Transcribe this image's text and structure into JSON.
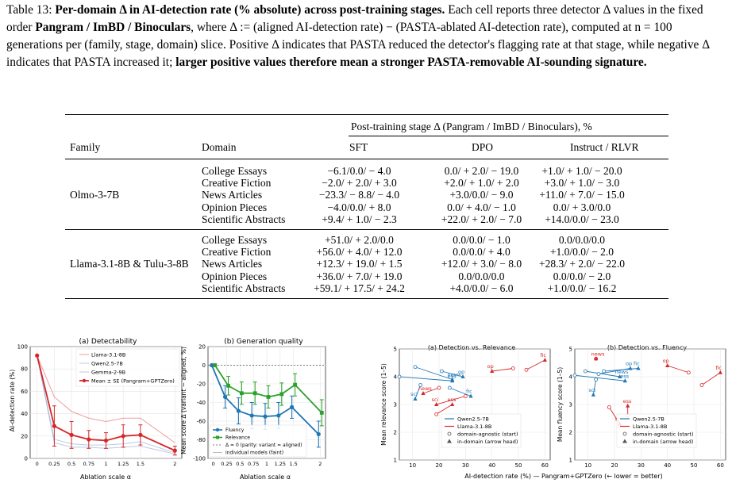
{
  "caption": {
    "label": "Table 13:",
    "title": "Per-domain Δ in AI-detection rate (% absolute) across post-training stages.",
    "text1": "Each cell reports three detector Δ values in the fixed order",
    "order": "Pangram / ImBD / Binoculars",
    "text2": ", where Δ := (aligned AI-detection rate) − (PASTA-ablated AI-detection rate), computed at n = 100 generations per (family, stage, domain) slice. Positive Δ indicates that PASTA reduced the detector's flagging rate at that stage, while negative Δ indicates that PASTA increased it;",
    "emph": "larger positive values therefore mean a stronger PASTA-removable AI-sounding signature."
  },
  "table": {
    "group_header": "Post-training stage   Δ (Pangram / ImBD / Binoculars), %",
    "col_family": "Family",
    "col_domain": "Domain",
    "stages": [
      "SFT",
      "DPO",
      "Instruct / RLVR"
    ],
    "groups": [
      {
        "family": "Olmo-3-7B",
        "rows": [
          {
            "domain": "College Essays",
            "vals": [
              "−6.1/0.0/ − 4.0",
              "0.0/ + 2.0/ − 19.0",
              "+1.0/ + 1.0/ − 20.0"
            ]
          },
          {
            "domain": "Creative Fiction",
            "vals": [
              "−2.0/ + 2.0/ + 3.0",
              "+2.0/ + 1.0/ + 2.0",
              "+3.0/ + 1.0/ − 3.0"
            ]
          },
          {
            "domain": "News Articles",
            "vals": [
              "−23.3/ − 8.8/ − 4.0",
              "+3.0/0.0/ − 9.0",
              "+11.0/ + 7.0/ − 15.0"
            ]
          },
          {
            "domain": "Opinion Pieces",
            "vals": [
              "−4.0/0.0/ + 8.0",
              "0.0/ + 4.0/ − 1.0",
              "0.0/ + 3.0/0.0"
            ]
          },
          {
            "domain": "Scientific Abstracts",
            "vals": [
              "+9.4/ + 1.0/ − 2.3",
              "+22.0/ + 2.0/ − 7.0",
              "+14.0/0.0/ − 23.0"
            ]
          }
        ]
      },
      {
        "family": "Llama-3.1-8B & Tulu-3-8B",
        "rows": [
          {
            "domain": "College Essays",
            "vals": [
              "+51.0/ + 2.0/0.0",
              "0.0/0.0/ − 1.0",
              "0.0/0.0/0.0"
            ]
          },
          {
            "domain": "Creative Fiction",
            "vals": [
              "+56.0/ + 4.0/ + 12.0",
              "0.0/0.0/ + 4.0",
              "+1.0/0.0/ − 2.0"
            ]
          },
          {
            "domain": "News Articles",
            "vals": [
              "+12.3/ + 19.0/ + 1.5",
              "+12.0/ + 3.0/ − 8.0",
              "+28.3/ + 2.0/ − 22.0"
            ]
          },
          {
            "domain": "Opinion Pieces",
            "vals": [
              "+36.0/ + 7.0/ + 19.0",
              "0.0/0.0/0.0",
              "0.0/0.0/ − 2.0"
            ]
          },
          {
            "domain": "Scientific Abstracts",
            "vals": [
              "+59.1/ + 17.5/ + 24.2",
              "+4.0/0.0/ − 6.0",
              "+1.0/0.0/ − 16.2"
            ]
          }
        ]
      }
    ]
  },
  "colors": {
    "llama": "#d62728",
    "qwen": "#1f77b4",
    "gemma": "#7f7fbf",
    "fluency": "#1f77b4",
    "relevance": "#2ca02c"
  },
  "chart_data": [
    {
      "type": "line",
      "title": "(a) Detectability",
      "xlabel": "Ablation scale  α",
      "ylabel": "AI-detection rate (%)",
      "x": [
        0,
        0.25,
        0.5,
        0.75,
        1,
        1.25,
        1.5,
        2
      ],
      "xticks": [
        "0",
        "0.25",
        "0.5",
        "0.75",
        "1",
        "1.25",
        "1.5",
        "2"
      ],
      "ylim": [
        0,
        100
      ],
      "yticks": [
        0,
        20,
        40,
        60,
        80,
        100
      ],
      "series": [
        {
          "name": "Llama-3.1-8B",
          "values": [
            92,
            55,
            42,
            36,
            33,
            36,
            36,
            14
          ]
        },
        {
          "name": "Qwen2.5-7B",
          "values": [
            92,
            17,
            13,
            12,
            12,
            13,
            15,
            5
          ]
        },
        {
          "name": "Gemma-2-9B",
          "values": [
            92,
            14,
            10,
            10,
            9,
            10,
            11,
            4
          ]
        },
        {
          "name": "Mean ± SE (Pangram+GPTZero)",
          "values": [
            92,
            29,
            21,
            17,
            16,
            20,
            21,
            7
          ],
          "err": [
            0,
            18,
            12,
            8,
            7,
            10,
            9,
            4
          ]
        }
      ]
    },
    {
      "type": "line",
      "title": "(b) Generation quality",
      "xlabel": "Ablation scale  α",
      "ylabel": "Mean score Δ (variant − aligned, %)",
      "x": [
        0,
        0.25,
        0.5,
        0.75,
        1,
        1.25,
        1.5,
        2
      ],
      "xticks": [
        "0",
        "0.25",
        "0.5",
        "0.75",
        "1",
        "1.25",
        "1.5",
        "2"
      ],
      "ylim": [
        -100,
        20
      ],
      "yticks": [
        20,
        0,
        -20,
        -40,
        -60,
        -80,
        -100
      ],
      "legend": [
        "Fluency",
        "Relevance",
        "Δ = 0 (parity: variant = aligned)",
        "individual models (faint)"
      ],
      "series": [
        {
          "name": "Fluency",
          "values": [
            0,
            -34,
            -49,
            -54,
            -55,
            -54,
            -45,
            -74
          ],
          "err": [
            0,
            12,
            14,
            14,
            14,
            14,
            12,
            14
          ]
        },
        {
          "name": "Relevance",
          "values": [
            0,
            -22,
            -30,
            -30,
            -34,
            -31,
            -21,
            -51
          ],
          "err": [
            0,
            10,
            12,
            12,
            12,
            12,
            12,
            14
          ]
        }
      ]
    },
    {
      "type": "scatter",
      "title": "(a) Detection vs. Relevance",
      "ylabel": "Mean relevance score (1–5)",
      "xlim": [
        5,
        62
      ],
      "ylim": [
        1,
        5
      ],
      "xticks": [
        10,
        20,
        30,
        40,
        50,
        60
      ],
      "yticks": [
        1,
        2,
        3,
        4,
        5
      ],
      "series": [
        {
          "name": "Qwen2.5-7B",
          "arrows": [
            {
              "label": "news",
              "from": [
                11,
                4.35
              ],
              "to": [
                25,
                3.9
              ]
            },
            {
              "label": "op",
              "from": [
                21,
                4.2
              ],
              "to": [
                29,
                4.0
              ]
            },
            {
              "label": "ess",
              "from": [
                5,
                4.0
              ],
              "to": [
                25,
                3.85
              ]
            },
            {
              "label": "fic",
              "from": [
                24,
                3.6
              ],
              "to": [
                32,
                3.3
              ]
            },
            {
              "label": "sci",
              "from": [
                13,
                3.7
              ],
              "to": [
                11,
                3.2
              ]
            }
          ]
        },
        {
          "name": "Llama-3.1-8B",
          "arrows": [
            {
              "label": "fic",
              "from": [
                53,
                4.25
              ],
              "to": [
                60,
                4.6
              ]
            },
            {
              "label": "op",
              "from": [
                48,
                4.3
              ],
              "to": [
                40,
                4.2
              ]
            },
            {
              "label": "news",
              "from": [
                20,
                3.6
              ],
              "to": [
                14,
                3.4
              ]
            },
            {
              "label": "sci",
              "from": [
                30,
                3.3
              ],
              "to": [
                19,
                3.0
              ]
            },
            {
              "label": "ess",
              "from": [
                19,
                2.65
              ],
              "to": [
                25,
                3.0
              ]
            }
          ]
        }
      ],
      "legend": [
        "Qwen2.5-7B",
        "Llama-3.1-8B",
        "domain-agnostic (start)",
        "in-domain (arrow head)"
      ]
    },
    {
      "type": "scatter",
      "title": "(b) Detection vs. Fluency",
      "ylabel": "Mean fluency score (1–5)",
      "xlim": [
        5,
        62
      ],
      "ylim": [
        1,
        5
      ],
      "xticks": [
        10,
        20,
        30,
        40,
        50,
        60
      ],
      "yticks": [
        1,
        2,
        3,
        4,
        5
      ],
      "series": [
        {
          "name": "Qwen2.5-7B",
          "arrows": [
            {
              "label": "news",
              "from": [
                9,
                4.2
              ],
              "to": [
                22,
                4.0
              ]
            },
            {
              "label": "op",
              "from": [
                14,
                4.1
              ],
              "to": [
                26,
                4.3
              ]
            },
            {
              "label": "ess",
              "from": [
                5,
                4.05
              ],
              "to": [
                24,
                3.85
              ]
            },
            {
              "label": "fic",
              "from": [
                16,
                4.2
              ],
              "to": [
                29,
                4.3
              ]
            },
            {
              "label": "sci",
              "from": [
                13,
                3.9
              ],
              "to": [
                12,
                3.35
              ]
            }
          ]
        },
        {
          "name": "Llama-3.1-8B",
          "arrows": [
            {
              "label": "news",
              "from": [
                13,
                4.65
              ],
              "to": [
                13,
                4.65
              ]
            },
            {
              "label": "op",
              "from": [
                48,
                4.15
              ],
              "to": [
                40,
                4.4
              ]
            },
            {
              "label": "fic",
              "from": [
                53,
                3.7
              ],
              "to": [
                60,
                4.15
              ]
            },
            {
              "label": "ess",
              "from": [
                25,
                2.6
              ],
              "to": [
                25,
                2.95
              ]
            },
            {
              "label": "sci",
              "from": [
                18,
                2.9
              ],
              "to": [
                22,
                2.3
              ]
            }
          ]
        }
      ],
      "legend": [
        "Qwen2.5-7B",
        "Llama-3.1-8B",
        "domain-agnostic (start)",
        "in-domain (arrow head)"
      ]
    }
  ],
  "scatter_xlabel": "AI-detection rate (%) — Pangram+GPTZero  (← lower = better)"
}
